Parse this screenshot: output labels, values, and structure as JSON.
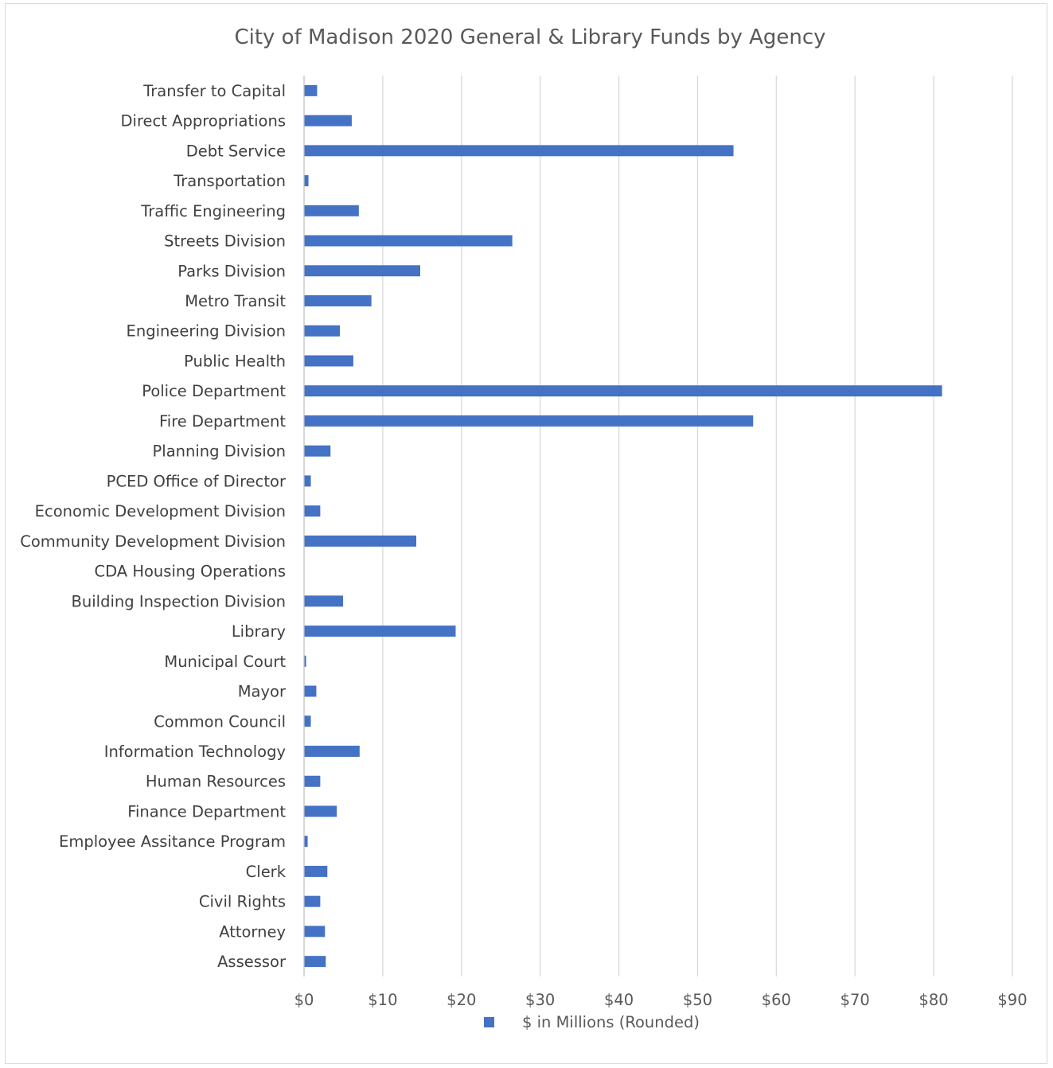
{
  "chart_data": {
    "type": "bar",
    "orientation": "horizontal",
    "title": "City of Madison 2020 General & Library Funds by Agency",
    "xlabel": "",
    "ylabel": "",
    "xlim": [
      0,
      90
    ],
    "tick_values": [
      0,
      10,
      20,
      30,
      40,
      50,
      60,
      70,
      80,
      90
    ],
    "tick_labels": [
      "$0",
      "$10",
      "$20",
      "$30",
      "$40",
      "$50",
      "$60",
      "$70",
      "$80",
      "$90"
    ],
    "grid": "vertical",
    "legend_position": "bottom",
    "categories": [
      "Transfer to Capital",
      "Direct Appropriations",
      "Debt Service",
      "Transportation",
      "Traffic Engineering",
      "Streets Division",
      "Parks Division",
      "Metro Transit",
      "Engineering Division",
      "Public Health",
      "Police Department",
      "Fire Department",
      "Planning Division",
      "PCED Office of Director",
      "Economic Development Division",
      "Community Development Division",
      "CDA Housing Operations",
      "Building Inspection Division",
      "Library",
      "Municipal Court",
      "Mayor",
      "Common Council",
      "Information Technology",
      "Human Resources",
      "Finance Department",
      "Employee Assitance Program",
      "Clerk",
      "Civil Rights",
      "Attorney",
      "Assessor"
    ],
    "series": [
      {
        "name": "$ in Millions (Rounded)",
        "color": "#4472c4",
        "values": [
          1.6,
          6.0,
          54.5,
          0.5,
          6.9,
          26.4,
          14.7,
          8.5,
          4.5,
          6.2,
          81.0,
          57.0,
          3.3,
          0.8,
          2.0,
          14.2,
          0.0,
          4.9,
          19.2,
          0.2,
          1.5,
          0.8,
          7.0,
          2.0,
          4.1,
          0.4,
          2.9,
          2.0,
          2.6,
          2.7
        ]
      }
    ]
  }
}
